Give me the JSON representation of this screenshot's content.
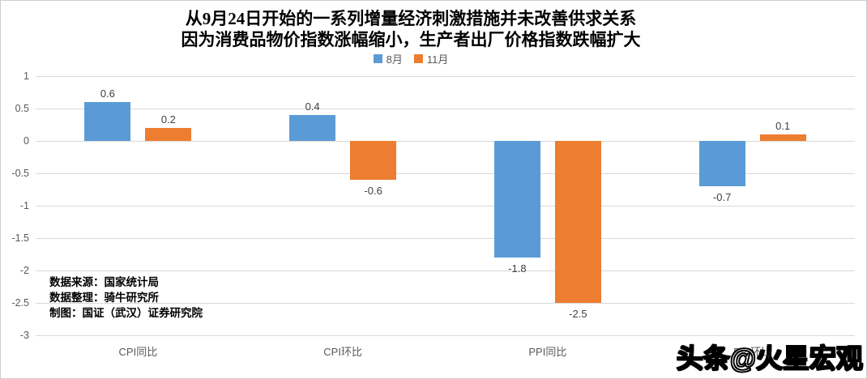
{
  "chart_data": {
    "type": "bar",
    "title": "从9月24日开始的一系列增量经济刺激措施并未改善供求关系",
    "subtitle": "因为消费品物价指数涨幅缩小，生产者出厂价格指数跌幅扩大",
    "categories": [
      "CPI同比",
      "CPI环比",
      "PPI同比",
      "PPI环比"
    ],
    "series": [
      {
        "name": "8月",
        "color": "#5B9BD5",
        "values": [
          0.6,
          0.4,
          -1.8,
          -0.7
        ]
      },
      {
        "name": "11月",
        "color": "#ED7D31",
        "values": [
          0.2,
          -0.6,
          -2.5,
          0.1
        ]
      }
    ],
    "ylim": [
      -3,
      1
    ],
    "yticks": [
      "1",
      "0.5",
      "0",
      "-0.5",
      "-1",
      "-1.5",
      "-2",
      "-2.5",
      "-3"
    ],
    "grid": true,
    "grid_color": "#D9D9D9",
    "axis_label_color": "#595959",
    "data_label_color": "#404040",
    "legend_position": "top"
  },
  "annotations": {
    "lines": [
      "数据来源：国家统计局",
      "数据整理：骑牛研究所",
      "制图：国证（武汉）证券研究院"
    ]
  },
  "watermark": {
    "text": "头条@火星宏观"
  }
}
